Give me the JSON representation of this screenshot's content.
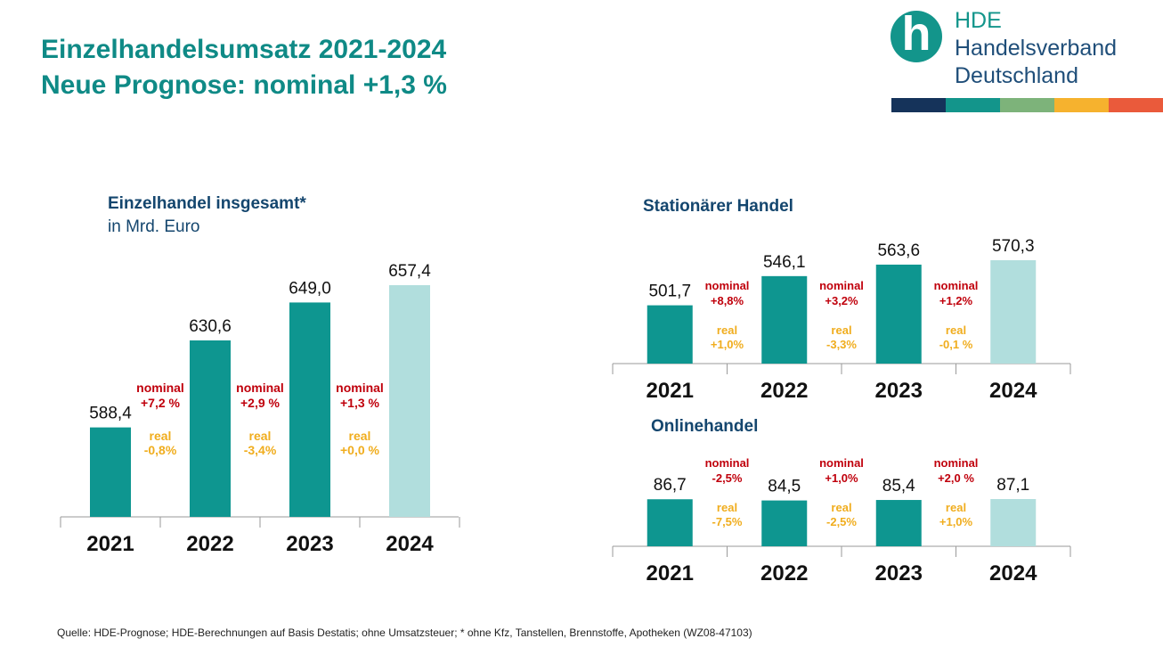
{
  "title": {
    "line1": "Einzelhandelsumsatz 2021-2024",
    "line2": "Neue Prognose: nominal +1,3 %"
  },
  "logo": {
    "icon": "hde-h-circle-icon",
    "line1": "HDE",
    "line2": "Handelsverband",
    "line3": "Deutschland",
    "stripe_colors": [
      "#15335a",
      "#13958b",
      "#7db37a",
      "#f6b22e",
      "#ea5a3b"
    ]
  },
  "colors": {
    "bar": "#0e9690",
    "bar_forecast": "#b1dedd",
    "nominal": "#c0000c",
    "real": "#f0ad1e",
    "chart_title": "#14466e",
    "axis": "#9a9a9a"
  },
  "chart_data": [
    {
      "type": "bar",
      "title": "Einzelhandel insgesamt*",
      "subtitle": "in Mrd. Euro",
      "categories": [
        "2021",
        "2022",
        "2023",
        "2024"
      ],
      "values": [
        588.4,
        630.6,
        649.0,
        657.4
      ],
      "value_labels": [
        "588,4",
        "630,6",
        "649,0",
        "657,4"
      ],
      "forecast_index": 3,
      "ylim": [
        545,
        675
      ],
      "changes": [
        {
          "nominal_label": "nominal",
          "nominal": "+7,2 %",
          "real_label": "real",
          "real": "-0,8%"
        },
        {
          "nominal_label": "nominal",
          "nominal": "+2,9 %",
          "real_label": "real",
          "real": "-3,4%"
        },
        {
          "nominal_label": "nominal",
          "nominal": "+1,3 %",
          "real_label": "real",
          "real": "+0,0 %"
        }
      ]
    },
    {
      "type": "bar",
      "title": "Stationärer Handel",
      "subtitle": "",
      "categories": [
        "2021",
        "2022",
        "2023",
        "2024"
      ],
      "values": [
        501.7,
        546.1,
        563.6,
        570.3
      ],
      "value_labels": [
        "501,7",
        "546,1",
        "563,6",
        "570,3"
      ],
      "forecast_index": 3,
      "ylim": [
        413,
        585
      ],
      "changes": [
        {
          "nominal_label": "nominal",
          "nominal": "+8,8%",
          "real_label": "real",
          "real": "+1,0%"
        },
        {
          "nominal_label": "nominal",
          "nominal": "+3,2%",
          "real_label": "real",
          "real": "-3,3%"
        },
        {
          "nominal_label": "nominal",
          "nominal": "+1,2%",
          "real_label": "real",
          "real": "-0,1 %"
        }
      ]
    },
    {
      "type": "bar",
      "title": "Onlinehandel",
      "subtitle": "",
      "categories": [
        "2021",
        "2022",
        "2023",
        "2024"
      ],
      "values": [
        86.7,
        84.5,
        85.4,
        87.1
      ],
      "value_labels": [
        "86,7",
        "84,5",
        "85,4",
        "87,1"
      ],
      "forecast_index": 3,
      "ylim": [
        0,
        93
      ],
      "changes": [
        {
          "nominal_label": "nominal",
          "nominal": "-2,5%",
          "real_label": "real",
          "real": "-7,5%"
        },
        {
          "nominal_label": "nominal",
          "nominal": "+1,0%",
          "real_label": "real",
          "real": "-2,5%"
        },
        {
          "nominal_label": "nominal",
          "nominal": "+2,0 %",
          "real_label": "real",
          "real": "+1,0%"
        }
      ]
    }
  ],
  "footnote": "Quelle: HDE-Prognose; HDE-Berechnungen auf Basis Destatis; ohne Umsatzsteuer; * ohne Kfz, Tanstellen, Brennstoffe, Apotheken (WZ08-47103)"
}
